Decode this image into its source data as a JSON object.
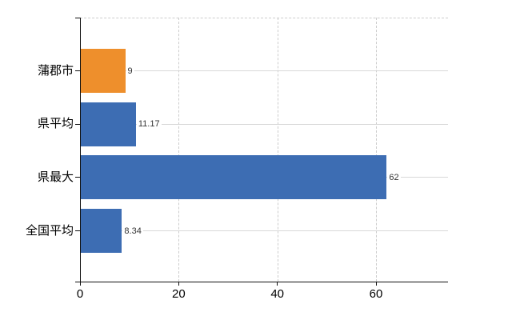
{
  "chart_data": {
    "type": "bar",
    "orientation": "horizontal",
    "title": "",
    "xlabel": "",
    "ylabel": "",
    "categories": [
      "蒲郡市",
      "県平均",
      "県最大",
      "全国平均"
    ],
    "values": [
      9,
      11.17,
      62,
      8.34
    ],
    "value_labels": [
      "9",
      "11.17",
      "62",
      "8.34"
    ],
    "bar_colors": [
      "#ee8f2c",
      "#3d6db3",
      "#3d6db3",
      "#3d6db3"
    ],
    "xlim": [
      0,
      74.6
    ],
    "x_ticks": [
      0,
      20,
      40,
      60
    ],
    "x_tick_labels": [
      "0",
      "20",
      "40",
      "60"
    ],
    "grid": true,
    "legend": false,
    "colors": {
      "highlight_bar": "#ee8f2c",
      "default_bar": "#3d6db3",
      "axis": "#111111",
      "gridline": "#d8d8d8",
      "text": "#000000",
      "value_text": "#333333",
      "background": "#ffffff"
    }
  }
}
